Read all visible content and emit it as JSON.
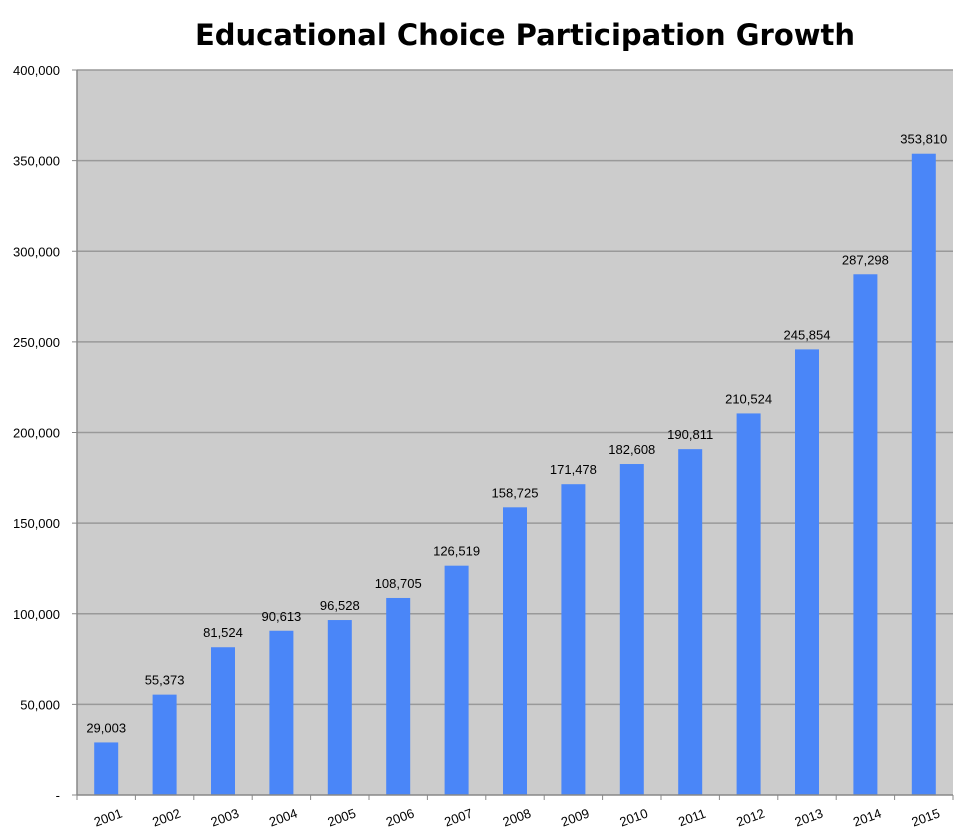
{
  "chart_data": {
    "type": "bar",
    "title": "Educational Choice Participation Growth",
    "xlabel": "",
    "ylabel": "",
    "categories": [
      "2001",
      "2002",
      "2003",
      "2004",
      "2005",
      "2006",
      "2007",
      "2008",
      "2009",
      "2010",
      "2011",
      "2012",
      "2013",
      "2014",
      "2015"
    ],
    "values": [
      29003,
      55373,
      81524,
      90613,
      96528,
      108705,
      126519,
      158725,
      171478,
      182608,
      190811,
      210524,
      245854,
      287298,
      353810
    ],
    "data_labels": [
      "29,003",
      "55,373",
      "81,524",
      "90,613",
      "96,528",
      "108,705",
      "126,519",
      "158,725",
      "171,478",
      "182,608",
      "190,811",
      "210,524",
      "245,854",
      "287,298",
      "353,810"
    ],
    "ylim": [
      0,
      400000
    ],
    "yticks": [
      0,
      50000,
      100000,
      150000,
      200000,
      250000,
      300000,
      350000,
      400000
    ],
    "ytick_labels": [
      "-",
      "50,000",
      "100,000",
      "150,000",
      "200,000",
      "250,000",
      "300,000",
      "350,000",
      "400,000"
    ],
    "grid": true,
    "legend": "none",
    "colors": {
      "bar": "#4a86f8",
      "plot_background": "#cccccc",
      "grid": "#999999"
    }
  }
}
